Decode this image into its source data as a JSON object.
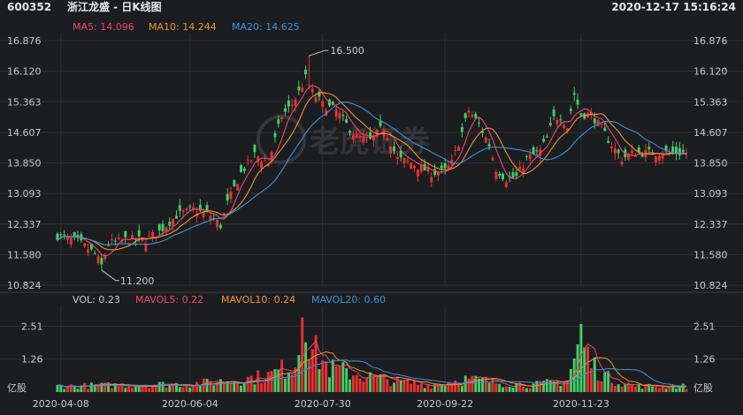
{
  "header": {
    "code": "600352",
    "title": "浙江龙盛 - 日K线图",
    "datetime": "2020-12-17 15:16:24"
  },
  "legend": {
    "ma5": "MA5: 14.096",
    "ma10": "MA10: 14.244",
    "ma20": "MA20: 14.625",
    "vol": "VOL: 0.23",
    "mavol5": "MAVOL5: 0.22",
    "mavol10": "MAVOL10: 0.24",
    "mavol20": "MAVOL20: 0.60"
  },
  "colors": {
    "up": "#e8322f",
    "down": "#40d067",
    "ma5": "#e9476d",
    "ma10": "#f0912f",
    "ma20": "#3a92d9",
    "grid": "#2e3036",
    "text": "#c8c8c8"
  },
  "watermark": "老虎证券",
  "chart_data": {
    "type": "candlestick",
    "price_ticks": [
      "16.876",
      "16.120",
      "15.363",
      "14.607",
      "13.850",
      "13.093",
      "12.337",
      "11.580",
      "10.824"
    ],
    "price_range": [
      10.824,
      16.876
    ],
    "volume_ticks": [
      "2.51",
      "1.26"
    ],
    "volume_unit": "亿股",
    "volume_range": [
      0,
      3.1
    ],
    "x_labels": [
      {
        "label": "2020-04-08",
        "index": 1
      },
      {
        "label": "2020-06-04",
        "index": 39
      },
      {
        "label": "2020-07-30",
        "index": 78
      },
      {
        "label": "2020-09-22",
        "index": 114
      },
      {
        "label": "2020-11-23",
        "index": 154
      }
    ],
    "annotations": [
      {
        "text": "16.500",
        "index": 74,
        "price": 16.5
      },
      {
        "text": "11.200",
        "index": 13,
        "price": 11.2
      }
    ],
    "bars": 186,
    "anchors": [
      [
        0,
        12.05
      ],
      [
        6,
        11.9
      ],
      [
        11,
        11.6
      ],
      [
        13,
        11.3
      ],
      [
        15,
        11.85
      ],
      [
        20,
        11.95
      ],
      [
        26,
        11.95
      ],
      [
        30,
        12.15
      ],
      [
        35,
        12.55
      ],
      [
        40,
        12.7
      ],
      [
        45,
        12.55
      ],
      [
        48,
        12.3
      ],
      [
        50,
        12.85
      ],
      [
        54,
        13.6
      ],
      [
        58,
        14.05
      ],
      [
        62,
        13.85
      ],
      [
        66,
        15.0
      ],
      [
        69,
        15.3
      ],
      [
        71,
        15.6
      ],
      [
        73,
        15.95
      ],
      [
        75,
        15.6
      ],
      [
        78,
        15.3
      ],
      [
        82,
        15.15
      ],
      [
        85,
        14.8
      ],
      [
        88,
        14.5
      ],
      [
        92,
        14.4
      ],
      [
        96,
        14.75
      ],
      [
        100,
        13.95
      ],
      [
        104,
        13.85
      ],
      [
        110,
        13.6
      ],
      [
        114,
        13.65
      ],
      [
        116,
        13.85
      ],
      [
        119,
        14.6
      ],
      [
        121,
        15.15
      ],
      [
        124,
        14.8
      ],
      [
        127,
        14.3
      ],
      [
        129,
        13.7
      ],
      [
        132,
        13.45
      ],
      [
        135,
        13.5
      ],
      [
        138,
        13.95
      ],
      [
        142,
        14.15
      ],
      [
        144,
        14.45
      ],
      [
        146,
        14.95
      ],
      [
        148,
        15.0
      ],
      [
        150,
        14.75
      ],
      [
        152,
        15.55
      ],
      [
        154,
        15.05
      ],
      [
        157,
        15.05
      ],
      [
        160,
        14.7
      ],
      [
        163,
        14.3
      ],
      [
        166,
        13.95
      ],
      [
        168,
        14.05
      ],
      [
        170,
        14.1
      ]
    ],
    "volume_anchors": [
      [
        0,
        0.25
      ],
      [
        20,
        0.3
      ],
      [
        40,
        0.35
      ],
      [
        55,
        0.55
      ],
      [
        62,
        0.7
      ],
      [
        70,
        1.2
      ],
      [
        72,
        2.6
      ],
      [
        75,
        1.8
      ],
      [
        80,
        1.0
      ],
      [
        90,
        0.7
      ],
      [
        100,
        0.45
      ],
      [
        110,
        0.3
      ],
      [
        120,
        0.55
      ],
      [
        130,
        0.4
      ],
      [
        140,
        0.3
      ],
      [
        150,
        0.5
      ],
      [
        154,
        2.3
      ],
      [
        157,
        1.2
      ],
      [
        162,
        0.6
      ],
      [
        170,
        0.25
      ]
    ],
    "ma_vol_end": {
      "ma5": 0.22,
      "ma10": 0.24,
      "ma20": 0.6
    }
  }
}
